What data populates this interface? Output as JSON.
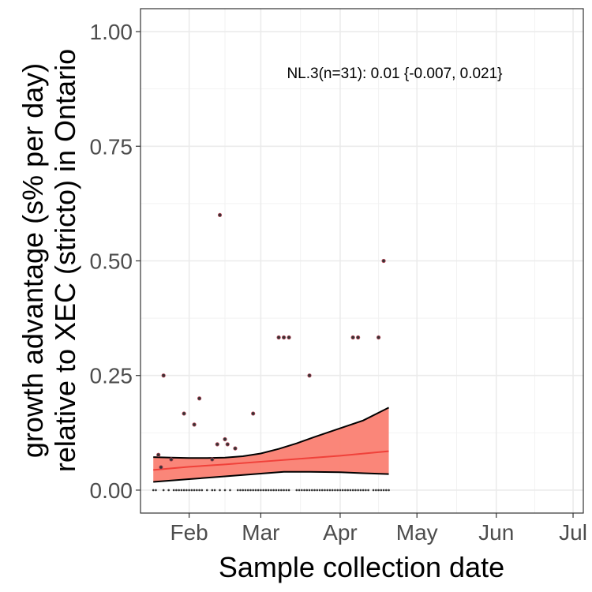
{
  "chart_data": {
    "type": "scatter",
    "xlabel": "Sample collection date",
    "ylabel_lines": [
      "growth advantage (s% per day)",
      "relative to XEC (stricto) in Ontario"
    ],
    "annotation": "NL.3(n=31): 0.01 {-0.007, 0.021}",
    "xlim": [
      "2025-01-13",
      "2025-07-05"
    ],
    "ylim": [
      -0.05,
      1.05
    ],
    "x_ticks": [
      {
        "date": "2025-02-01",
        "label": "Feb"
      },
      {
        "date": "2025-03-01",
        "label": "Mar"
      },
      {
        "date": "2025-04-01",
        "label": "Apr"
      },
      {
        "date": "2025-05-01",
        "label": "May"
      },
      {
        "date": "2025-06-01",
        "label": "Jun"
      },
      {
        "date": "2025-07-01",
        "label": "Jul"
      }
    ],
    "y_ticks": [
      {
        "value": 0,
        "label": "0.00"
      },
      {
        "value": 0.25,
        "label": "0.25"
      },
      {
        "value": 0.5,
        "label": "0.50"
      },
      {
        "value": 0.75,
        "label": "0.75"
      },
      {
        "value": 1,
        "label": "1.00"
      }
    ],
    "grid": true,
    "colors": {
      "fit": "#f0413a",
      "ribbon": "#fa8072",
      "bounds": "#000000",
      "points": "#333333",
      "point_outline": "#b5485a"
    },
    "fit": {
      "x": [
        "2025-01-18",
        "2025-02-01",
        "2025-02-15",
        "2025-03-01",
        "2025-03-15",
        "2025-04-01",
        "2025-04-20"
      ],
      "y": [
        0.044,
        0.051,
        0.056,
        0.062,
        0.068,
        0.075,
        0.085
      ]
    },
    "ci_upper": {
      "x": [
        "2025-01-18",
        "2025-01-25",
        "2025-02-01",
        "2025-02-08",
        "2025-02-15",
        "2025-02-22",
        "2025-03-01",
        "2025-03-08",
        "2025-03-15",
        "2025-03-22",
        "2025-04-01",
        "2025-04-10",
        "2025-04-20"
      ],
      "y": [
        0.072,
        0.071,
        0.07,
        0.07,
        0.071,
        0.074,
        0.08,
        0.09,
        0.102,
        0.116,
        0.135,
        0.152,
        0.18
      ]
    },
    "ci_lower": {
      "x": [
        "2025-01-18",
        "2025-02-01",
        "2025-02-15",
        "2025-03-01",
        "2025-03-10",
        "2025-03-20",
        "2025-04-01",
        "2025-04-10",
        "2025-04-20"
      ],
      "y": [
        0.018,
        0.024,
        0.03,
        0.036,
        0.04,
        0.04,
        0.039,
        0.037,
        0.035
      ]
    },
    "points": [
      {
        "x": "2025-01-20",
        "y": 0.077
      },
      {
        "x": "2025-01-21",
        "y": 0.05
      },
      {
        "x": "2025-01-22",
        "y": 0.25
      },
      {
        "x": "2025-01-25",
        "y": 0.067
      },
      {
        "x": "2025-01-30",
        "y": 0.167
      },
      {
        "x": "2025-02-03",
        "y": 0.143
      },
      {
        "x": "2025-02-05",
        "y": 0.2
      },
      {
        "x": "2025-02-10",
        "y": 0.067
      },
      {
        "x": "2025-02-12",
        "y": 0.1
      },
      {
        "x": "2025-02-13",
        "y": 0.6
      },
      {
        "x": "2025-02-15",
        "y": 0.111
      },
      {
        "x": "2025-02-16",
        "y": 0.1
      },
      {
        "x": "2025-02-19",
        "y": 0.091
      },
      {
        "x": "2025-02-26",
        "y": 0.167
      },
      {
        "x": "2025-03-08",
        "y": 0.333
      },
      {
        "x": "2025-03-10",
        "y": 0.333
      },
      {
        "x": "2025-03-12",
        "y": 0.333
      },
      {
        "x": "2025-03-20",
        "y": 0.25
      },
      {
        "x": "2025-04-06",
        "y": 0.333
      },
      {
        "x": "2025-04-08",
        "y": 0.333
      },
      {
        "x": "2025-04-16",
        "y": 0.333
      },
      {
        "x": "2025-04-18",
        "y": 0.5
      }
    ],
    "zero_points_x": [
      "2025-01-18",
      "2025-01-19",
      "2025-01-22",
      "2025-01-24",
      "2025-01-26",
      "2025-01-27",
      "2025-01-28",
      "2025-01-29",
      "2025-01-30",
      "2025-01-31",
      "2025-02-01",
      "2025-02-02",
      "2025-02-03",
      "2025-02-04",
      "2025-02-05",
      "2025-02-06",
      "2025-02-08",
      "2025-02-10",
      "2025-02-11",
      "2025-02-13",
      "2025-02-15",
      "2025-02-17",
      "2025-02-20",
      "2025-02-21",
      "2025-02-22",
      "2025-02-23",
      "2025-02-24",
      "2025-02-25",
      "2025-02-26",
      "2025-02-27",
      "2025-02-28",
      "2025-03-01",
      "2025-03-02",
      "2025-03-03",
      "2025-03-04",
      "2025-03-05",
      "2025-03-06",
      "2025-03-07",
      "2025-03-08",
      "2025-03-09",
      "2025-03-10",
      "2025-03-11",
      "2025-03-12",
      "2025-03-15",
      "2025-03-16",
      "2025-03-17",
      "2025-03-18",
      "2025-03-19",
      "2025-03-20",
      "2025-03-21",
      "2025-03-22",
      "2025-03-23",
      "2025-03-24",
      "2025-03-25",
      "2025-03-26",
      "2025-03-27",
      "2025-03-28",
      "2025-03-29",
      "2025-03-30",
      "2025-03-31",
      "2025-04-01",
      "2025-04-02",
      "2025-04-03",
      "2025-04-04",
      "2025-04-05",
      "2025-04-06",
      "2025-04-07",
      "2025-04-08",
      "2025-04-09",
      "2025-04-10",
      "2025-04-11",
      "2025-04-12",
      "2025-04-14",
      "2025-04-15",
      "2025-04-16",
      "2025-04-17",
      "2025-04-18",
      "2025-04-19",
      "2025-04-20"
    ]
  }
}
